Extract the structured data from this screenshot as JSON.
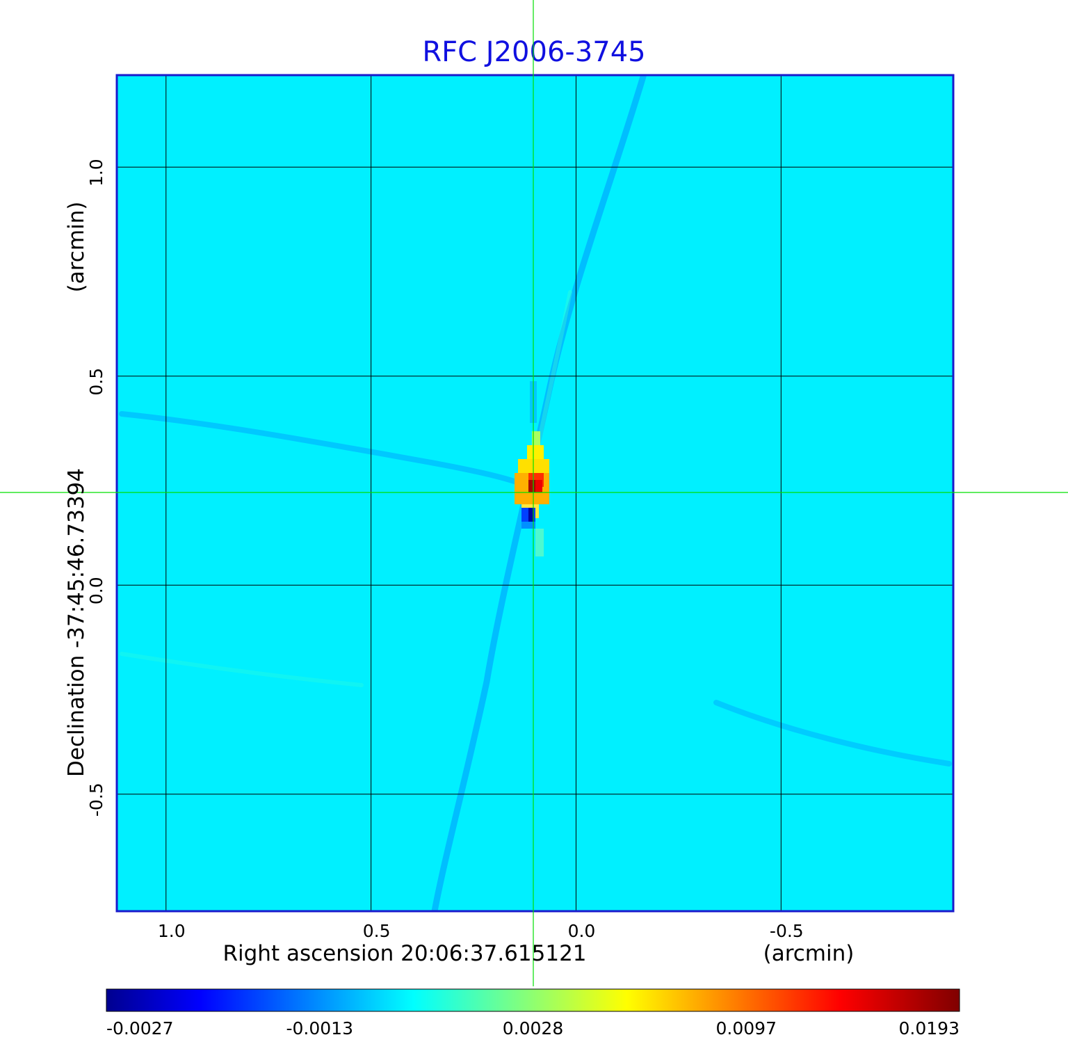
{
  "chart_data": {
    "type": "heatmap",
    "title": "RFC J2006-3745",
    "xlabel": "Right ascension  20:06:37.615121",
    "xunit": "(arcmin)",
    "ylabel": "Declination  -37:45:46.73394",
    "yunit": "(arcmin)",
    "xlim": [
      1.12,
      -0.92
    ],
    "ylim": [
      -0.78,
      1.22
    ],
    "x_ticks": [
      {
        "value": 1.0,
        "label": "1.0"
      },
      {
        "value": 0.5,
        "label": "0.5"
      },
      {
        "value": 0.0,
        "label": "0.0"
      },
      {
        "value": -0.5,
        "label": "-0.5"
      }
    ],
    "y_ticks": [
      {
        "value": 1.0,
        "label": "1.0"
      },
      {
        "value": 0.5,
        "label": "0.5"
      },
      {
        "value": 0.0,
        "label": "0.0"
      },
      {
        "value": -0.5,
        "label": "-0.5"
      }
    ],
    "grid": true,
    "crosshair": {
      "x": 0.105,
      "y": 0.22
    },
    "peak": {
      "x": 0.105,
      "y": 0.22,
      "value": 0.0193
    },
    "colorbar": {
      "min": -0.0027,
      "max": 0.0193,
      "tick_labels": [
        "-0.0027",
        "-0.0013",
        "0.0028",
        "0.0097",
        "0.0193"
      ]
    },
    "colors": {
      "title": "#1010e0",
      "frame": "#1a1acc",
      "background_map": "#00f0ff",
      "crosshair": "#00e000"
    }
  }
}
